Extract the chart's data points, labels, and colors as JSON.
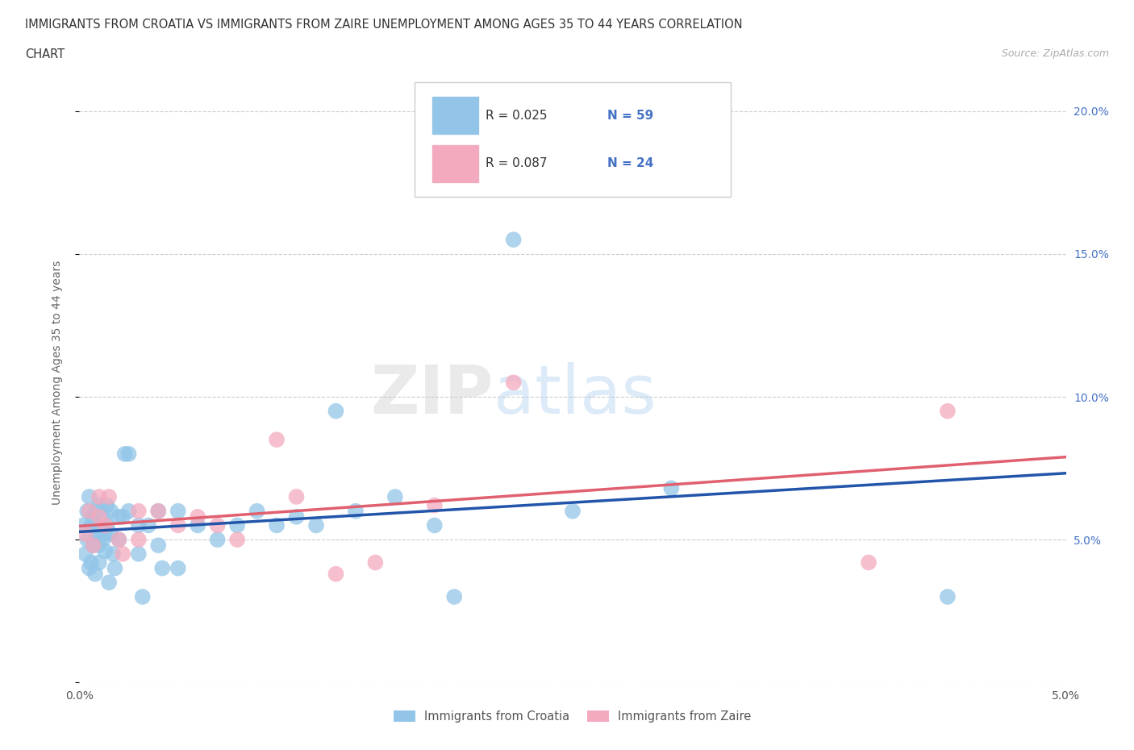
{
  "title_line1": "IMMIGRANTS FROM CROATIA VS IMMIGRANTS FROM ZAIRE UNEMPLOYMENT AMONG AGES 35 TO 44 YEARS CORRELATION",
  "title_line2": "CHART",
  "source": "Source: ZipAtlas.com",
  "ylabel": "Unemployment Among Ages 35 to 44 years",
  "xlim": [
    0.0,
    0.05
  ],
  "ylim": [
    0.0,
    0.21
  ],
  "xtick_pos": [
    0.0,
    0.01,
    0.02,
    0.03,
    0.04,
    0.05
  ],
  "xtick_labels": [
    "0.0%",
    "",
    "",
    "",
    "",
    "5.0%"
  ],
  "ytick_pos": [
    0.0,
    0.05,
    0.1,
    0.15,
    0.2
  ],
  "ytick_labels": [
    "",
    "5.0%",
    "10.0%",
    "15.0%",
    "20.0%"
  ],
  "croatia_color": "#92C5E8",
  "zaire_color": "#F4AABE",
  "croatia_line_color": "#2255AA",
  "zaire_line_color": "#E06070",
  "R_croatia": 0.025,
  "N_croatia": 59,
  "R_zaire": 0.087,
  "N_zaire": 24,
  "legend_label_croatia": "Immigrants from Croatia",
  "legend_label_zaire": "Immigrants from Zaire",
  "background_color": "#ffffff",
  "grid_color": "#cccccc",
  "croatia_x": [
    0.0002,
    0.0003,
    0.0004,
    0.0004,
    0.0005,
    0.0005,
    0.0006,
    0.0006,
    0.0007,
    0.0007,
    0.0008,
    0.0008,
    0.0009,
    0.0009,
    0.001,
    0.001,
    0.001,
    0.0012,
    0.0012,
    0.0013,
    0.0013,
    0.0014,
    0.0014,
    0.0015,
    0.0016,
    0.0016,
    0.0017,
    0.0018,
    0.002,
    0.002,
    0.0022,
    0.0023,
    0.0025,
    0.0025,
    0.003,
    0.003,
    0.0032,
    0.0035,
    0.004,
    0.004,
    0.0042,
    0.005,
    0.005,
    0.006,
    0.007,
    0.008,
    0.009,
    0.01,
    0.011,
    0.012,
    0.013,
    0.014,
    0.016,
    0.018,
    0.019,
    0.022,
    0.025,
    0.03,
    0.044
  ],
  "croatia_y": [
    0.055,
    0.045,
    0.05,
    0.06,
    0.04,
    0.065,
    0.042,
    0.055,
    0.048,
    0.058,
    0.038,
    0.05,
    0.053,
    0.06,
    0.042,
    0.048,
    0.062,
    0.05,
    0.058,
    0.046,
    0.052,
    0.055,
    0.062,
    0.035,
    0.052,
    0.06,
    0.045,
    0.04,
    0.05,
    0.058,
    0.058,
    0.08,
    0.06,
    0.08,
    0.045,
    0.055,
    0.03,
    0.055,
    0.048,
    0.06,
    0.04,
    0.06,
    0.04,
    0.055,
    0.05,
    0.055,
    0.06,
    0.055,
    0.058,
    0.055,
    0.095,
    0.06,
    0.065,
    0.055,
    0.03,
    0.155,
    0.06,
    0.068,
    0.03
  ],
  "zaire_x": [
    0.0003,
    0.0005,
    0.0007,
    0.001,
    0.001,
    0.0013,
    0.0015,
    0.002,
    0.0022,
    0.003,
    0.003,
    0.004,
    0.005,
    0.006,
    0.007,
    0.008,
    0.01,
    0.011,
    0.013,
    0.015,
    0.018,
    0.022,
    0.04,
    0.044
  ],
  "zaire_y": [
    0.052,
    0.06,
    0.048,
    0.065,
    0.058,
    0.055,
    0.065,
    0.05,
    0.045,
    0.06,
    0.05,
    0.06,
    0.055,
    0.058,
    0.055,
    0.05,
    0.085,
    0.065,
    0.038,
    0.042,
    0.062,
    0.105,
    0.042,
    0.095
  ]
}
